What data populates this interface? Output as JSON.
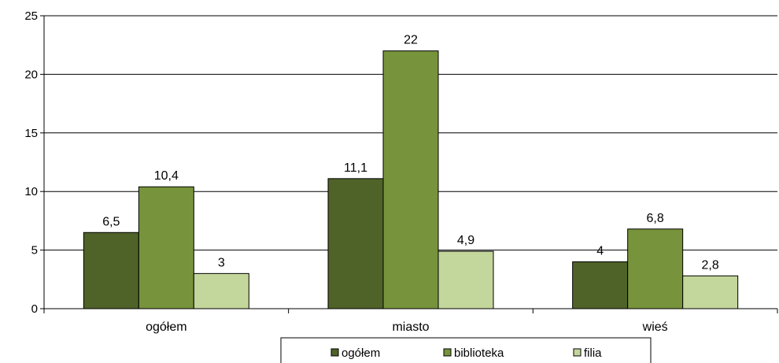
{
  "chart_data": {
    "type": "bar",
    "categories": [
      "ogółem",
      "miasto",
      "wieś"
    ],
    "series": [
      {
        "name": "ogółem",
        "values": [
          6.5,
          11.1,
          4
        ],
        "labels": [
          "6,5",
          "11,1",
          "4"
        ],
        "color": "#4f6228"
      },
      {
        "name": "biblioteka",
        "values": [
          10.4,
          22,
          6.8
        ],
        "labels": [
          "10,4",
          "22",
          "6,8"
        ],
        "color": "#77933c"
      },
      {
        "name": "filia",
        "values": [
          3,
          4.9,
          2.8
        ],
        "labels": [
          "3",
          "4,9",
          "2,8"
        ],
        "color": "#c3d69b"
      }
    ],
    "ylim": [
      0,
      25
    ],
    "yticks": [
      0,
      5,
      10,
      15,
      20,
      25
    ],
    "grid": true,
    "legend_position": "bottom",
    "xlabel": "",
    "ylabel": ""
  }
}
